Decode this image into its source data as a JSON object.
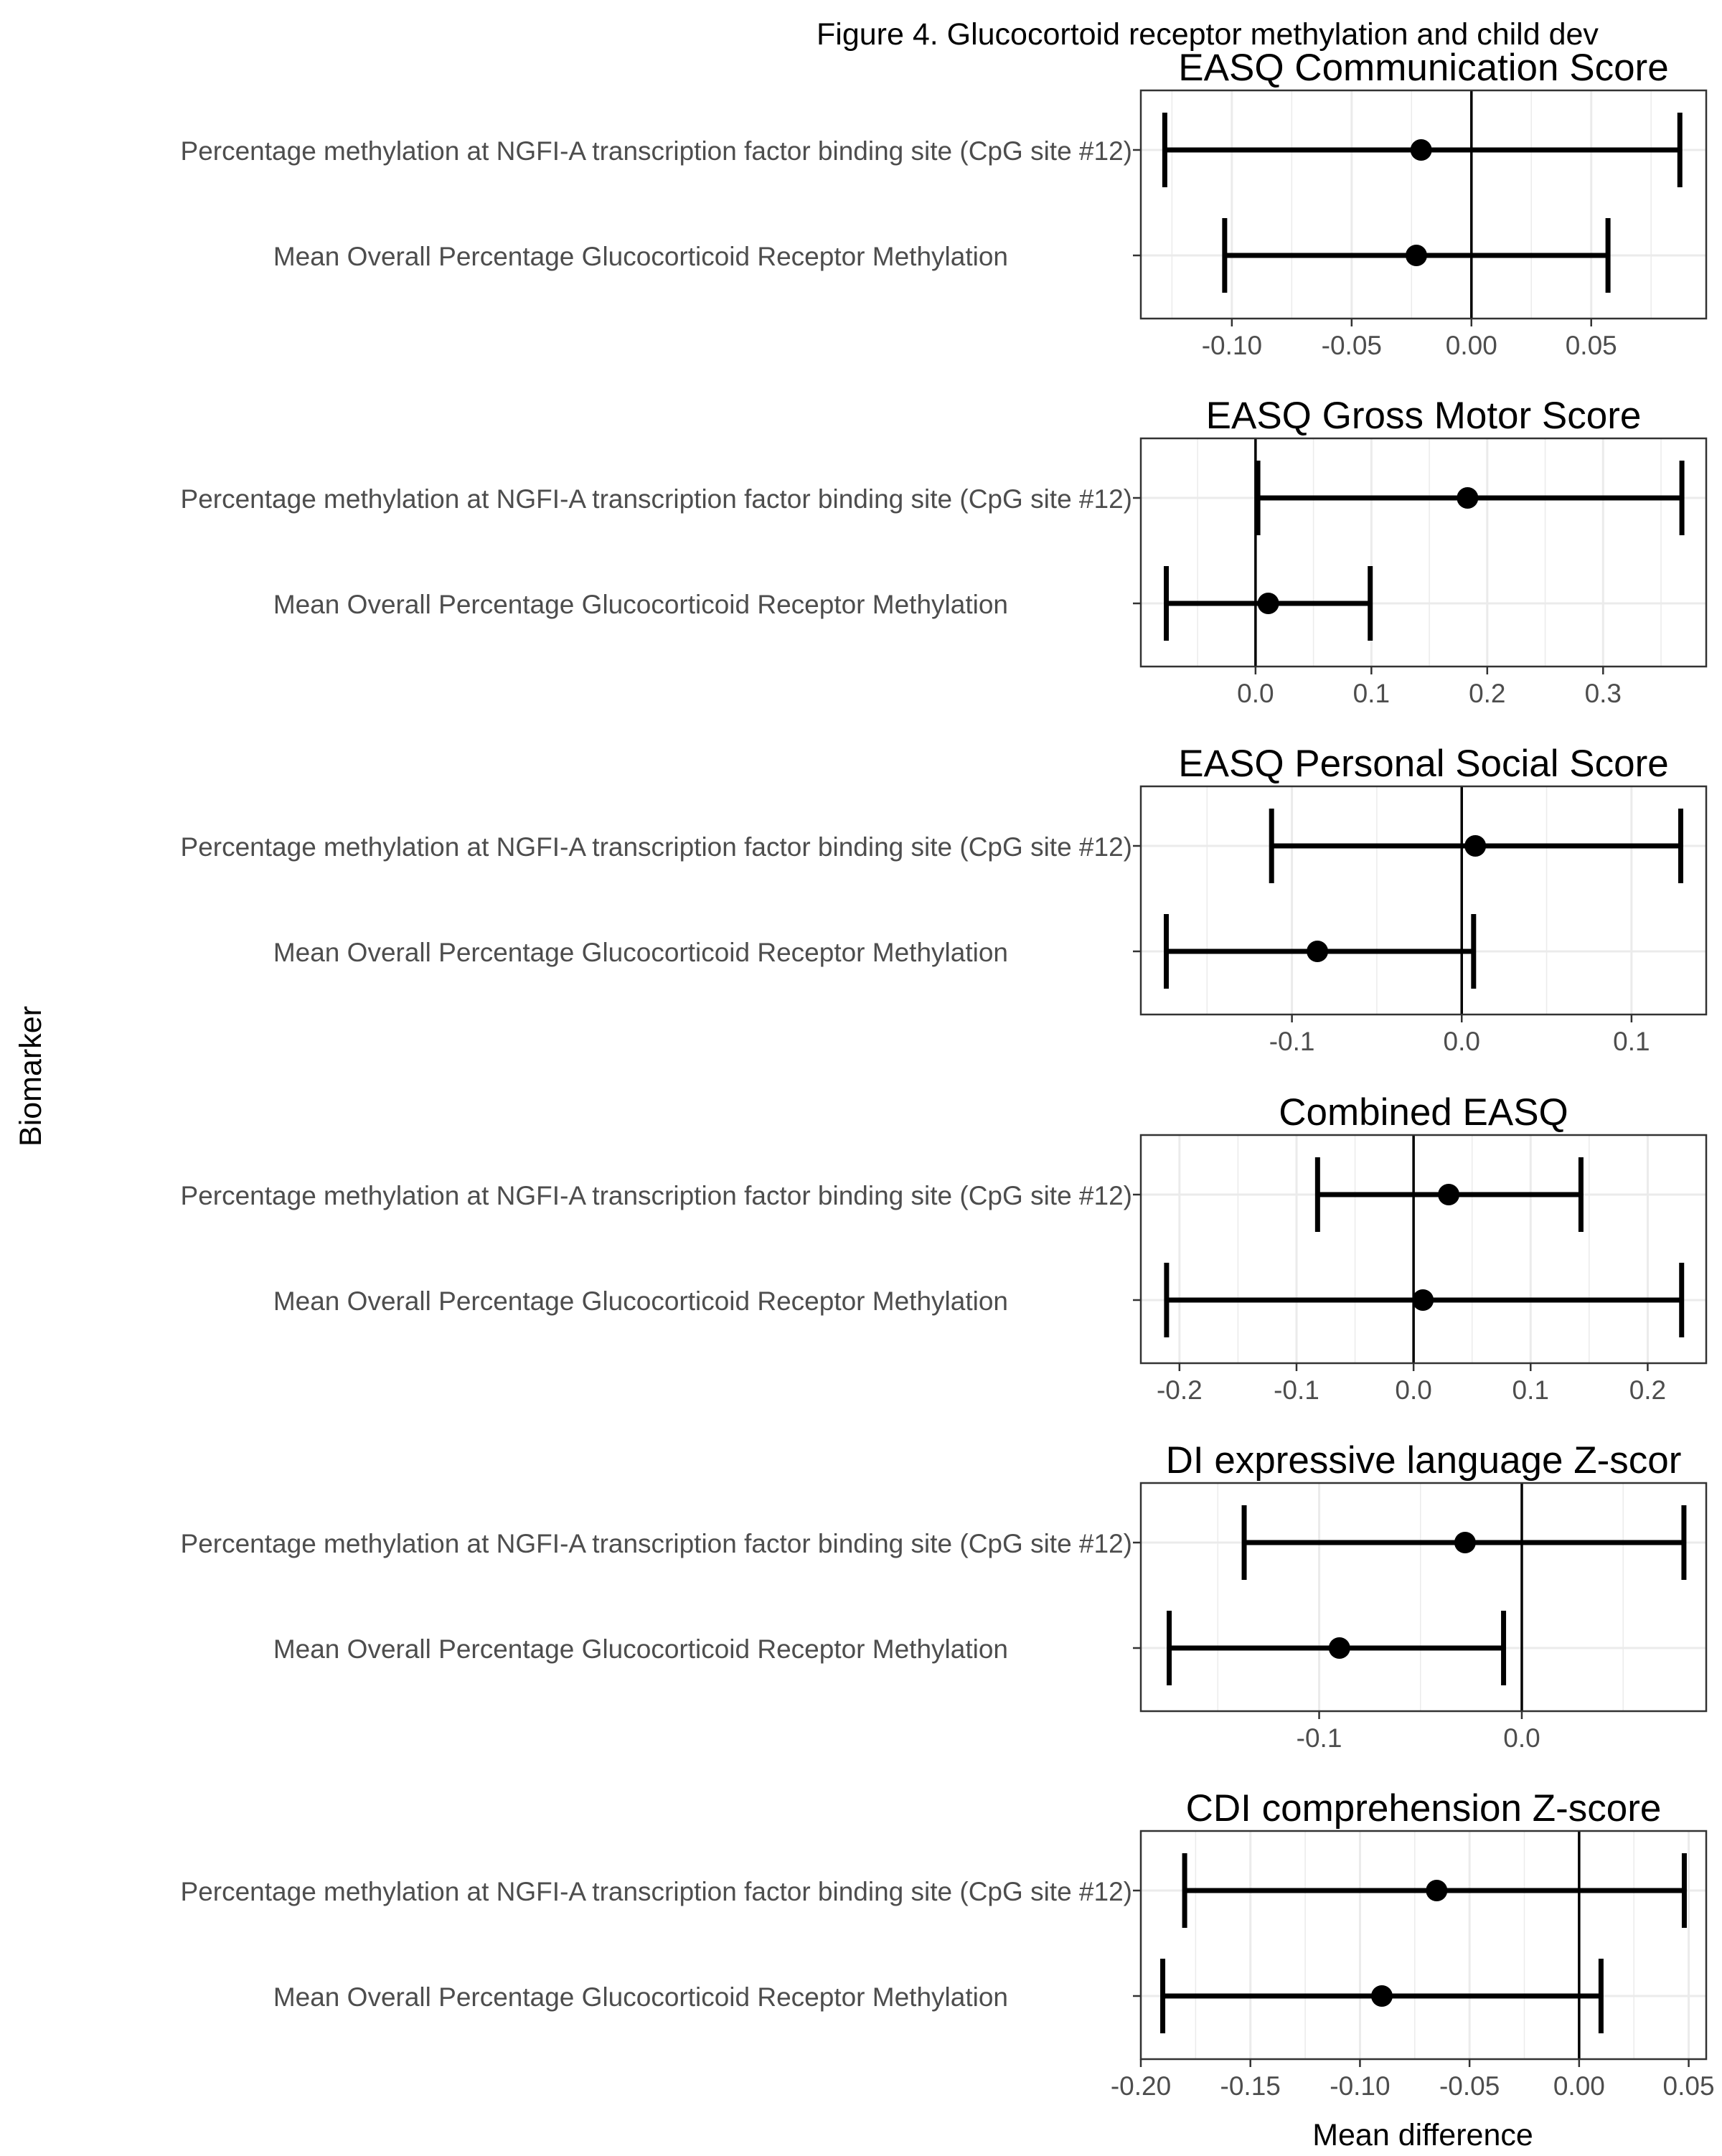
{
  "figure_title": "Figure 4. Glucocortoid receptor methylation and child dev",
  "y_axis_label": "Biomarker",
  "x_axis_label": "Mean difference",
  "colors": {
    "marks": "#000000",
    "panel_border": "#333333",
    "grid": "#ebebeb",
    "label_text": "#4d4d4d"
  },
  "chart_data": [
    {
      "type": "errorbar",
      "title": "EASQ Communication Score",
      "categories": [
        "Percentage methylation at NGFI-A transcription factor binding site (CpG site #12)",
        "Mean Overall Percentage Glucocorticoid Receptor Methylation"
      ],
      "estimate": [
        -0.021,
        -0.023
      ],
      "lower": [
        -0.128,
        -0.103
      ],
      "upper": [
        0.087,
        0.057
      ],
      "xlim": [
        -0.138,
        0.098
      ],
      "ticks": [
        -0.1,
        -0.05,
        0.0,
        0.05
      ],
      "tick_labels": [
        "-0.10",
        "-0.05",
        "0.00",
        "0.05"
      ],
      "reference_line": 0
    },
    {
      "type": "errorbar",
      "title": "EASQ Gross Motor Score",
      "categories": [
        "Percentage methylation at NGFI-A transcription factor binding site (CpG site #12)",
        "Mean Overall Percentage Glucocorticoid Receptor Methylation"
      ],
      "estimate": [
        0.183,
        0.011
      ],
      "lower": [
        0.002,
        -0.077
      ],
      "upper": [
        0.368,
        0.099
      ],
      "xlim": [
        -0.099,
        0.389
      ],
      "ticks": [
        0.0,
        0.1,
        0.2,
        0.3
      ],
      "tick_labels": [
        "0.0",
        "0.1",
        "0.2",
        "0.3"
      ],
      "reference_line": 0
    },
    {
      "type": "errorbar",
      "title": "EASQ Personal Social Score",
      "categories": [
        "Percentage methylation at NGFI-A transcription factor binding site (CpG site #12)",
        "Mean Overall Percentage Glucocorticoid Receptor Methylation"
      ],
      "estimate": [
        0.008,
        -0.085
      ],
      "lower": [
        -0.112,
        -0.174
      ],
      "upper": [
        0.129,
        0.007
      ],
      "xlim": [
        -0.189,
        0.144
      ],
      "ticks": [
        -0.1,
        0.0,
        0.1
      ],
      "tick_labels": [
        "-0.1",
        "0.0",
        "0.1"
      ],
      "reference_line": 0
    },
    {
      "type": "errorbar",
      "title": "Combined EASQ",
      "categories": [
        "Percentage methylation at NGFI-A transcription factor binding site (CpG site #12)",
        "Mean Overall Percentage Glucocorticoid Receptor Methylation"
      ],
      "estimate": [
        0.03,
        0.008
      ],
      "lower": [
        -0.082,
        -0.211
      ],
      "upper": [
        0.143,
        0.229
      ],
      "xlim": [
        -0.233,
        0.25
      ],
      "ticks": [
        -0.2,
        -0.1,
        0.0,
        0.1,
        0.2
      ],
      "tick_labels": [
        "-0.2",
        "-0.1",
        "0.0",
        "0.1",
        "0.2"
      ],
      "reference_line": 0
    },
    {
      "type": "errorbar",
      "title": "DI expressive language Z-scor",
      "categories": [
        "Percentage methylation at NGFI-A transcription factor binding site (CpG site #12)",
        "Mean Overall Percentage Glucocorticoid Receptor Methylation"
      ],
      "estimate": [
        -0.028,
        -0.09
      ],
      "lower": [
        -0.137,
        -0.174
      ],
      "upper": [
        0.08,
        -0.009
      ],
      "xlim": [
        -0.188,
        0.091
      ],
      "ticks": [
        -0.1,
        0.0
      ],
      "tick_labels": [
        "-0.1",
        "0.0"
      ],
      "reference_line": 0
    },
    {
      "type": "errorbar",
      "title": "CDI comprehension Z-score",
      "categories": [
        "Percentage methylation at NGFI-A transcription factor binding site (CpG site #12)",
        "Mean Overall Percentage Glucocorticoid Receptor Methylation"
      ],
      "estimate": [
        -0.065,
        -0.09
      ],
      "lower": [
        -0.18,
        -0.19
      ],
      "upper": [
        0.048,
        0.01
      ],
      "xlim": [
        -0.2,
        0.058
      ],
      "ticks": [
        -0.2,
        -0.15,
        -0.1,
        -0.05,
        0.0,
        0.05
      ],
      "tick_labels": [
        "-0.20",
        "-0.15",
        "-0.10",
        "-0.05",
        "0.00",
        "0.05"
      ],
      "reference_line": 0
    }
  ]
}
